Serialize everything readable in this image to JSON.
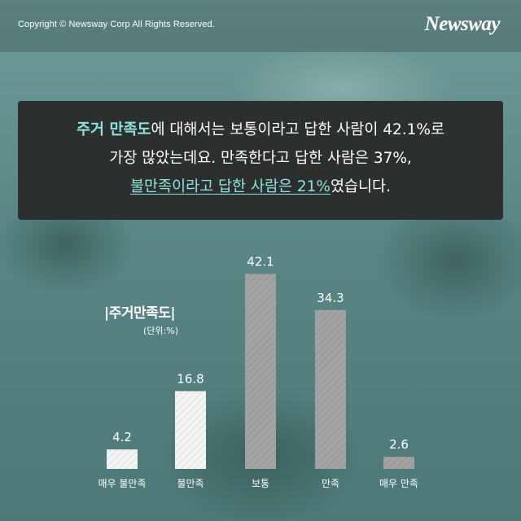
{
  "copyright": "Copyright © Newsway Corp All Rights Reserved.",
  "logo": "Newsway",
  "summary": {
    "line1_highlight": "주거 만족도",
    "line1_rest": "에 대해서는 보통이라고 답한 사람이 42.1%로",
    "line2": "가장 많았는데요. 만족한다고 답한 사람은 37%,",
    "line3_underlined": "불만족이라고 답한 사람은 21%",
    "line3_rest": "였습니다."
  },
  "chart_data": {
    "type": "bar",
    "title": "|주거만족도|",
    "unit": "(단위:%)",
    "categories": [
      "매우 불만족",
      "불만족",
      "보통",
      "만족",
      "매우 만족"
    ],
    "values": [
      4.2,
      16.8,
      42.1,
      34.3,
      2.6
    ],
    "value_labels": [
      "4.2",
      "16.8",
      "42.1",
      "34.3",
      "2.6"
    ],
    "ylim": [
      0,
      45
    ],
    "colors": {
      "light": "#f2f2f2",
      "dark": "#9a9a9a",
      "text": "#ffffff"
    }
  }
}
